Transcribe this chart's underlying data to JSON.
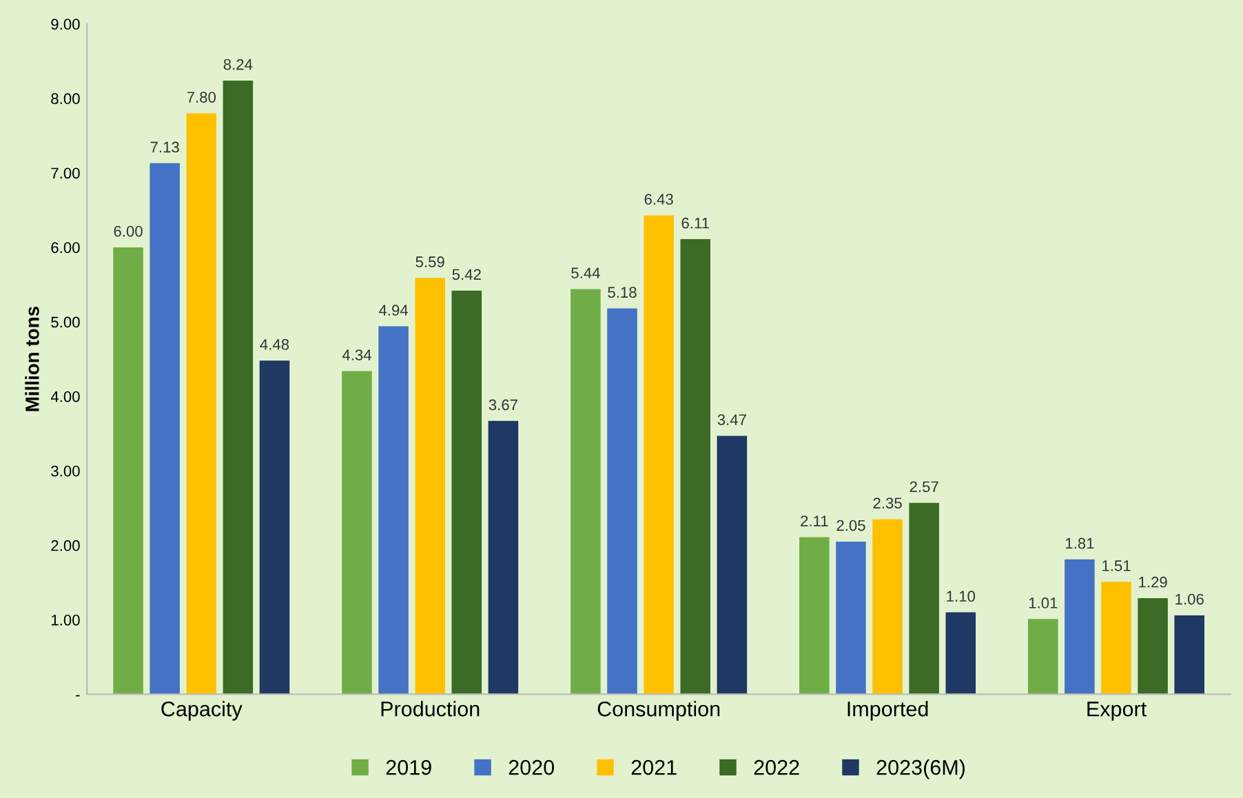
{
  "chart_data": {
    "type": "bar",
    "ylabel": "Million tons",
    "categories": [
      "Capacity",
      "Production",
      "Consumption",
      "Imported",
      "Export"
    ],
    "series": [
      {
        "name": "2019",
        "color": "#70ad47",
        "values": [
          6.0,
          4.34,
          5.44,
          2.11,
          1.01
        ],
        "value_labels": [
          "6.00",
          "4.34",
          "5.44",
          "2.11",
          "1.01"
        ]
      },
      {
        "name": "2020",
        "color": "#4472c4",
        "values": [
          7.13,
          4.94,
          5.18,
          2.05,
          1.81
        ],
        "value_labels": [
          "7.13",
          "4.94",
          "5.18",
          "2.05",
          "1.81"
        ]
      },
      {
        "name": "2021",
        "color": "#ffc000",
        "values": [
          7.8,
          5.59,
          6.43,
          2.35,
          1.51
        ],
        "value_labels": [
          "7.80",
          "5.59",
          "6.43",
          "2.35",
          "1.51"
        ]
      },
      {
        "name": "2022",
        "color": "#3b6b25",
        "values": [
          8.24,
          5.42,
          6.11,
          2.57,
          1.29
        ],
        "value_labels": [
          "8.24",
          "5.42",
          "6.11",
          "2.57",
          "1.29"
        ]
      },
      {
        "name": "2023(6M)",
        "color": "#203864",
        "values": [
          4.48,
          3.67,
          3.47,
          1.1,
          1.06
        ],
        "value_labels": [
          "4.48",
          "3.67",
          "3.47",
          "1.10",
          "1.06"
        ]
      }
    ],
    "ylim": [
      0,
      9
    ],
    "yticks": [
      {
        "value": 0,
        "label": "-"
      },
      {
        "value": 1,
        "label": "1.00"
      },
      {
        "value": 2,
        "label": "2.00"
      },
      {
        "value": 3,
        "label": "3.00"
      },
      {
        "value": 4,
        "label": "4.00"
      },
      {
        "value": 5,
        "label": "5.00"
      },
      {
        "value": 6,
        "label": "6.00"
      },
      {
        "value": 7,
        "label": "7.00"
      },
      {
        "value": 8,
        "label": "8.00"
      },
      {
        "value": 9,
        "label": "9.00"
      }
    ],
    "grid": false,
    "legend": "bottom"
  }
}
